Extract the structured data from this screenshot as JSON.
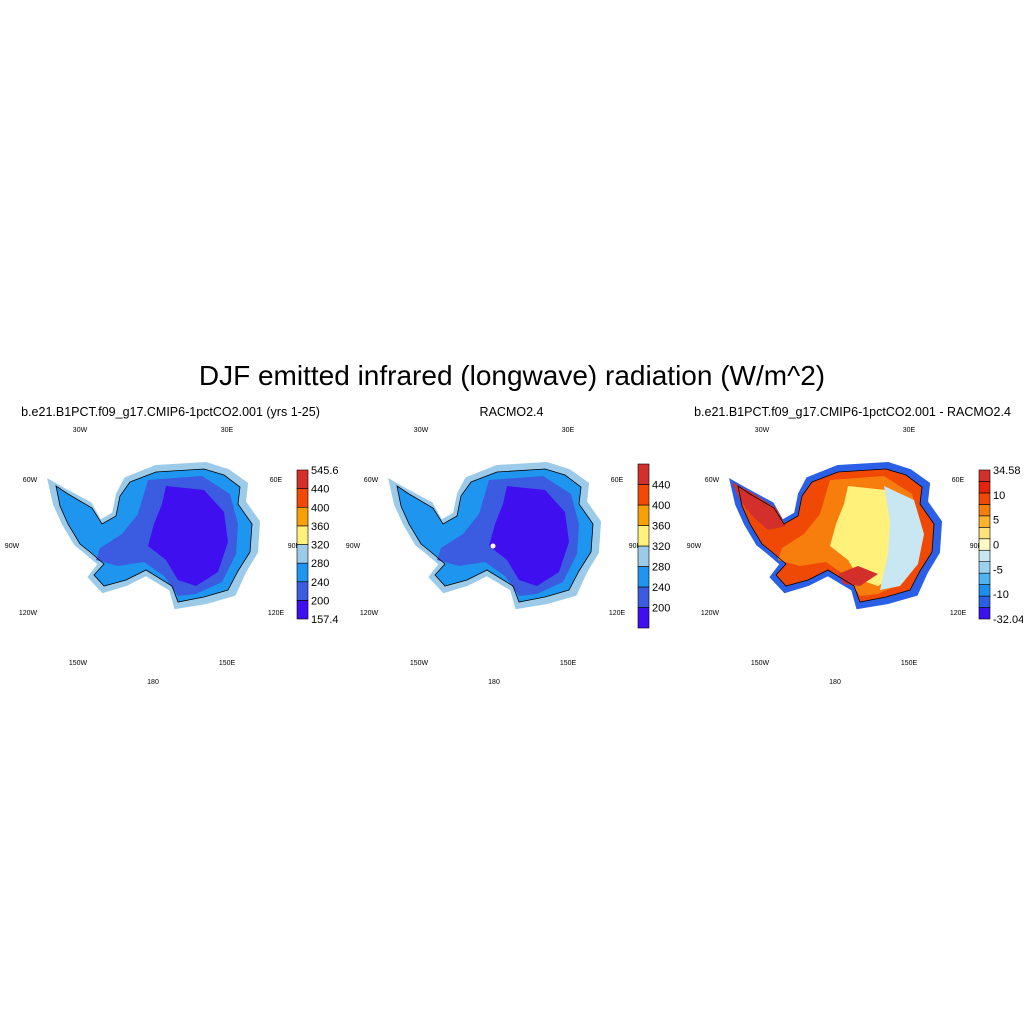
{
  "title": "DJF emitted infrared (longwave) radiation (W/m^2)",
  "geo_labels": {
    "lon_30w": "30W",
    "lon_30e": "30E",
    "lon_60w": "60W",
    "lon_60e": "60E",
    "lon_90w": "90W",
    "lon_90e": "90E",
    "lon_120w": "120W",
    "lon_120e": "120E",
    "lon_150w": "150W",
    "lon_150e": "150E",
    "lon_180": "180"
  },
  "panels": [
    {
      "id": "model",
      "title": "b.e21.B1PCT.f09_g17.CMIP6-1pctCO2.001 (yrs 1-25)",
      "colorbar": {
        "colors": [
          "#3f0ff0",
          "#3b5ce0",
          "#1e96f0",
          "#9ccbe9",
          "#fff17a",
          "#f7a107",
          "#f24a05",
          "#d3302b"
        ],
        "labels": [
          "157.4",
          "200",
          "240",
          "280",
          "320",
          "360",
          "400",
          "440",
          "545.6"
        ],
        "label_at_boundaries": true
      },
      "map_palette": {
        "outer": "#9ccbe9",
        "coast": "#1e96f0",
        "mid": "#3b5ce0",
        "core": "#3f0ff0"
      }
    },
    {
      "id": "racmo",
      "title": "RACMO2.4",
      "colorbar": {
        "colors": [
          "#3f0ff0",
          "#3b5ce0",
          "#1e96f0",
          "#9ccbe9",
          "#fff17a",
          "#f7a107",
          "#f24a05",
          "#d3302b"
        ],
        "labels": [
          "200",
          "240",
          "280",
          "320",
          "360",
          "400",
          "440"
        ],
        "label_at_boundaries": false
      },
      "map_palette": {
        "outer": "#9ccbe9",
        "coast": "#1e96f0",
        "mid": "#3b5ce0",
        "core": "#3f0ff0"
      }
    },
    {
      "id": "difference",
      "title": "b.e21.B1PCT.f09_g17.CMIP6-1pctCO2.001 - RACMO2.4",
      "colorbar": {
        "colors": [
          "#3c12f0",
          "#2b60e6",
          "#1e8ff0",
          "#4fb3f2",
          "#9ad2f0",
          "#c8e7f2",
          "#fff9c4",
          "#ffe27a",
          "#fcb52b",
          "#f77e0c",
          "#f04905",
          "#e5220a",
          "#d3302b"
        ],
        "labels": [
          "-32.04",
          "-10",
          "-5",
          "0",
          "5",
          "10",
          "34.58"
        ],
        "label_at_boundaries": true
      },
      "map_palette": {
        "outer": "#2b60e6",
        "coast": "#f04905",
        "mid": "#f77e0c",
        "core": "#fff17a",
        "east": "#c8e7f2",
        "peninsula": "#d3302b"
      }
    }
  ]
}
